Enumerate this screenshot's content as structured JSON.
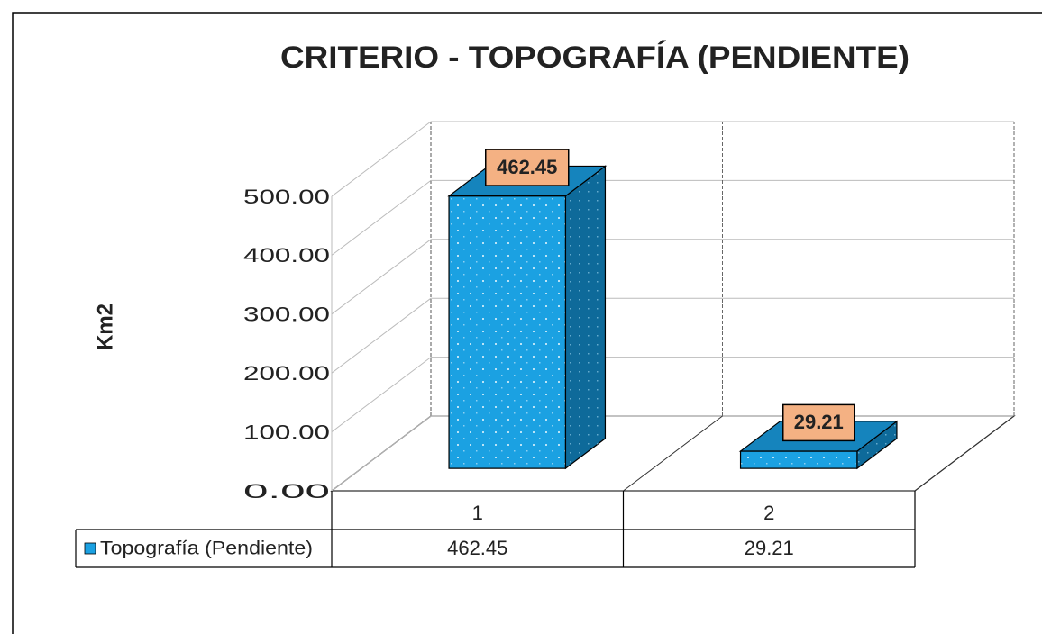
{
  "chart_data": {
    "type": "bar3d",
    "title": "CRITERIO - TOPOGRAFÍA (PENDIENTE)",
    "y_label": "Km2",
    "categories": [
      "1",
      "2"
    ],
    "series": [
      {
        "name": "Topografía (Pendiente)",
        "color": "#1ba1e2",
        "values": [
          462.45,
          29.21
        ]
      }
    ],
    "ylim": [
      0,
      500
    ],
    "yticks": [
      {
        "value": 0,
        "label": "0.00"
      },
      {
        "value": 100,
        "label": "100.00"
      },
      {
        "value": 200,
        "label": "200.00"
      },
      {
        "value": 300,
        "label": "300.00"
      },
      {
        "value": 400,
        "label": "400.00"
      },
      {
        "value": 500,
        "label": "500.00"
      }
    ],
    "grid": true,
    "data_table": true
  }
}
